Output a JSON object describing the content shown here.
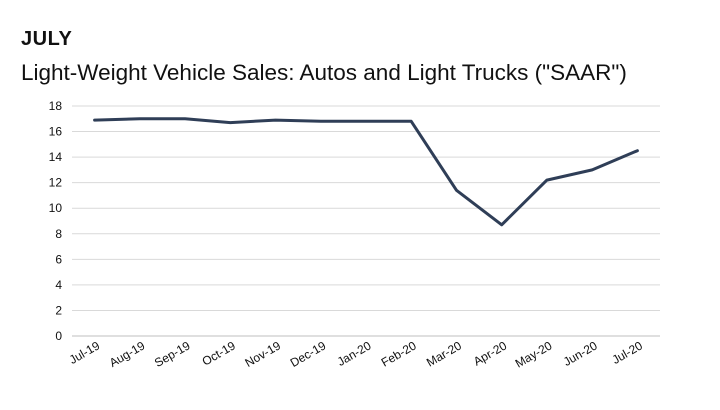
{
  "heading": "JULY",
  "title": "Light-Weight Vehicle Sales: Autos and Light Trucks (\"SAAR\")",
  "colors": {
    "line": "#2f3e57",
    "grid": "#d9d9d9",
    "axis": "#bfbfbf"
  },
  "chart_data": {
    "type": "line",
    "title": "Light-Weight Vehicle Sales: Autos and Light Trucks (\"SAAR\")",
    "xlabel": "",
    "ylabel": "",
    "categories": [
      "Jul-19",
      "Aug-19",
      "Sep-19",
      "Oct-19",
      "Nov-19",
      "Dec-19",
      "Jan-20",
      "Feb-20",
      "Mar-20",
      "Apr-20",
      "May-20",
      "Jun-20",
      "Jul-20"
    ],
    "series": [
      {
        "values": [
          16.9,
          17.0,
          17.0,
          16.7,
          16.9,
          16.8,
          16.8,
          16.8,
          11.4,
          8.7,
          12.2,
          13.0,
          14.5
        ]
      }
    ],
    "ylim": [
      0,
      18
    ],
    "yticks": [
      0,
      2,
      4,
      6,
      8,
      10,
      12,
      14,
      16,
      18
    ],
    "grid": true,
    "legend": "none"
  }
}
